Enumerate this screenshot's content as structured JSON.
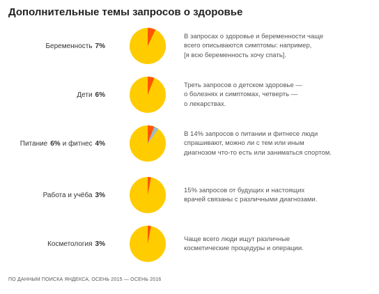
{
  "title": "Дополнительные темы запросов о здоровье",
  "colors": {
    "pie_base": "#FFCC00",
    "share": "#FF5500",
    "share_secondary": "#99BBCC"
  },
  "rows": [
    {
      "label": "Беременность",
      "value": "7%",
      "description": "В запросах о здоровье и беременности чаще\nвсего описываются симптомы: например,\n[я всю беременность хочу спать]."
    },
    {
      "label": "Дети",
      "value": "6%",
      "description": "Треть запросов о детском здоровье —\nо болезнях и симптомах, четверть —\nо лекарствах."
    },
    {
      "label": "Питание",
      "value": "6%",
      "connector": "и фитнес",
      "value2": "4%",
      "description": "В 14% запросов о питании и фитнесе люди\nспрашивают, можно ли с тем или иным\nдиагнозом что-то есть или заниматься спортом."
    },
    {
      "label": "Работа и учёба",
      "value": "3%",
      "description": "15% запросов от будущих и настоящих\nврачей связаны с различными диагнозами."
    },
    {
      "label": "Косметология",
      "value": "3%",
      "description": "Чаще всего люди ищут различные\nкосметические процедуры и операции."
    }
  ],
  "chart_data": [
    {
      "type": "pie",
      "slices": [
        {
          "name": "Беременность",
          "value": 7
        },
        {
          "name": "",
          "value": 93
        }
      ]
    },
    {
      "type": "pie",
      "slices": [
        {
          "name": "Дети",
          "value": 6
        },
        {
          "name": "",
          "value": 94
        }
      ]
    },
    {
      "type": "pie",
      "slices": [
        {
          "name": "Питание",
          "value": 6
        },
        {
          "name": "фитнес",
          "value": 4
        },
        {
          "name": "",
          "value": 90
        }
      ]
    },
    {
      "type": "pie",
      "slices": [
        {
          "name": "Работа и учёба",
          "value": 3
        },
        {
          "name": "",
          "value": 97
        }
      ]
    },
    {
      "type": "pie",
      "slices": [
        {
          "name": "Косметология",
          "value": 3
        },
        {
          "name": "",
          "value": 97
        }
      ]
    }
  ],
  "footer": "ПО ДАННЫМ ПОИСКА ЯНДЕКСА, ОСЕНЬ 2015 — ОСЕНЬ 2016"
}
